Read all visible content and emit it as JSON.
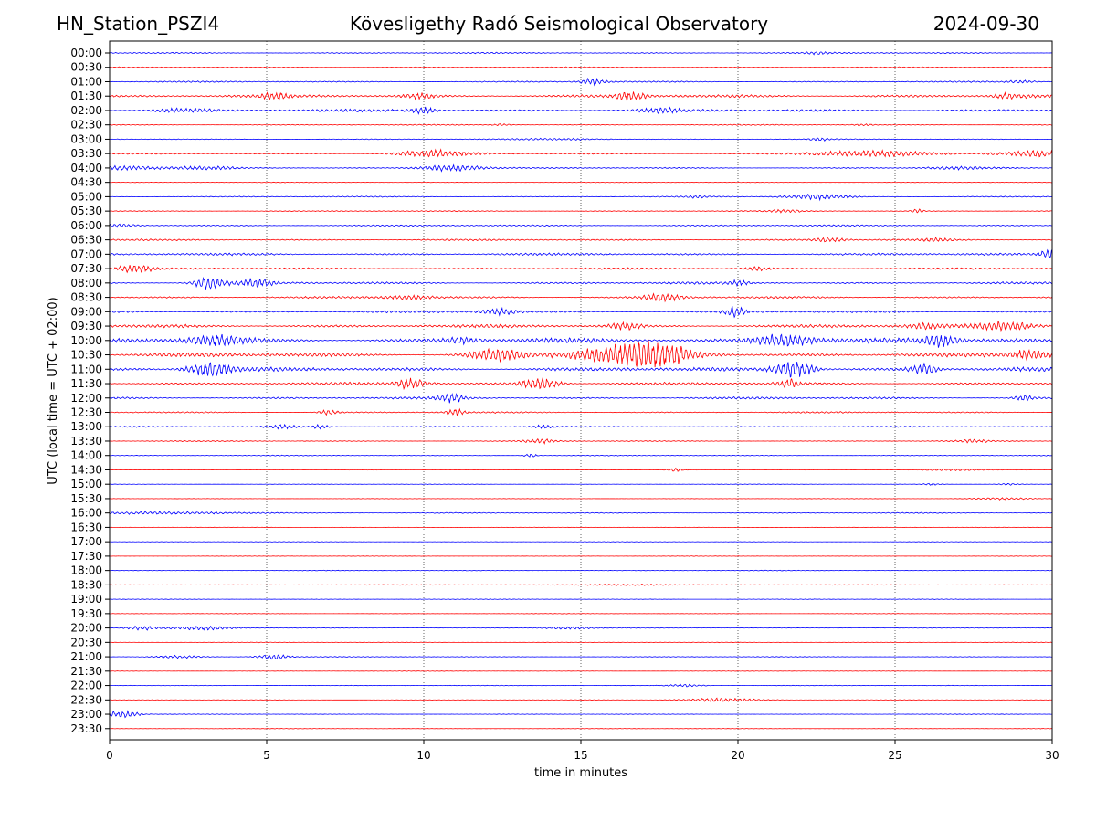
{
  "header": {
    "station": "HN_Station_PSZI4",
    "title": "Kövesligethy Radó Seismological Observatory",
    "date": "2024-09-30"
  },
  "chart_data": {
    "type": "line",
    "title": "Kövesligethy Radó Seismological Observatory",
    "xlabel": "time in minutes",
    "ylabel": "UTC (local time = UTC + 02:00)",
    "xlim": [
      0,
      30
    ],
    "xticks": [
      "0",
      "5",
      "10",
      "15",
      "20",
      "25",
      "30"
    ],
    "grid": "vertical dotted at every 5 minutes",
    "colors": {
      "even_rows": "#0000ff",
      "odd_rows": "#ff0000"
    },
    "rows": [
      {
        "label": "00:00",
        "amp": 1.2,
        "events": [
          [
            22.5,
            1.5,
            0.4
          ]
        ]
      },
      {
        "label": "00:30",
        "amp": 0.9,
        "events": []
      },
      {
        "label": "01:00",
        "amp": 1.3,
        "events": [
          [
            15.4,
            5,
            0.4
          ],
          [
            29.0,
            2,
            0.4
          ]
        ]
      },
      {
        "label": "01:30",
        "amp": 2.6,
        "events": [
          [
            5.3,
            4,
            0.4
          ],
          [
            9.9,
            4,
            0.5
          ],
          [
            16.6,
            6,
            0.5
          ],
          [
            28.6,
            3,
            0.5
          ]
        ]
      },
      {
        "label": "02:00",
        "amp": 2.4,
        "events": [
          [
            2.3,
            3,
            1.0
          ],
          [
            10.0,
            5,
            0.4
          ],
          [
            17.5,
            3,
            0.6
          ]
        ]
      },
      {
        "label": "02:30",
        "amp": 0.9,
        "events": [
          [
            12.5,
            1.5,
            0.3
          ],
          [
            24.0,
            1.5,
            0.3
          ]
        ]
      },
      {
        "label": "03:00",
        "amp": 0.8,
        "events": [
          [
            14.5,
            1.2,
            1.5
          ],
          [
            22.6,
            2,
            0.3
          ]
        ]
      },
      {
        "label": "03:30",
        "amp": 1.3,
        "events": [
          [
            10.3,
            5,
            1.2
          ],
          [
            24.0,
            4,
            2.0
          ],
          [
            28.5,
            2,
            0.8
          ],
          [
            29.6,
            5,
            0.7
          ]
        ]
      },
      {
        "label": "04:00",
        "amp": 1.1,
        "events": [
          [
            0.5,
            3,
            1.2
          ],
          [
            3.0,
            2,
            1.0
          ],
          [
            10.9,
            5,
            1.0
          ],
          [
            27.0,
            2,
            1.0
          ]
        ]
      },
      {
        "label": "04:30",
        "amp": 0.5,
        "events": []
      },
      {
        "label": "05:00",
        "amp": 1.0,
        "events": [
          [
            18.7,
            1.5,
            0.3
          ],
          [
            22.5,
            4,
            1.0
          ]
        ]
      },
      {
        "label": "05:30",
        "amp": 0.9,
        "events": [
          [
            21.5,
            2,
            0.5
          ],
          [
            25.7,
            3,
            0.2
          ]
        ]
      },
      {
        "label": "06:00",
        "amp": 1.3,
        "events": [
          [
            0.3,
            2,
            0.6
          ]
        ]
      },
      {
        "label": "06:30",
        "amp": 1.5,
        "events": [
          [
            22.9,
            3,
            0.5
          ],
          [
            26.3,
            2,
            0.5
          ]
        ]
      },
      {
        "label": "07:00",
        "amp": 2.0,
        "events": [
          [
            29.9,
            6,
            0.3
          ]
        ]
      },
      {
        "label": "07:30",
        "amp": 1.6,
        "events": [
          [
            0.8,
            6,
            0.6
          ],
          [
            20.6,
            3,
            0.4
          ]
        ]
      },
      {
        "label": "08:00",
        "amp": 2.0,
        "events": [
          [
            3.2,
            9,
            0.5
          ],
          [
            4.7,
            6,
            0.5
          ],
          [
            20.0,
            3,
            0.3
          ]
        ]
      },
      {
        "label": "08:30",
        "amp": 1.9,
        "events": [
          [
            9.5,
            3,
            0.8
          ],
          [
            17.6,
            6,
            0.6
          ]
        ]
      },
      {
        "label": "09:00",
        "amp": 2.0,
        "events": [
          [
            12.4,
            5,
            0.6
          ],
          [
            19.9,
            7,
            0.3
          ]
        ]
      },
      {
        "label": "09:30",
        "amp": 2.8,
        "events": [
          [
            16.4,
            5,
            0.5
          ],
          [
            28.5,
            7,
            1.0
          ],
          [
            26.0,
            4,
            0.5
          ]
        ]
      },
      {
        "label": "10:00",
        "amp": 4.0,
        "events": [
          [
            3.4,
            7,
            0.8
          ],
          [
            11.2,
            5,
            0.5
          ],
          [
            21.5,
            10,
            1.0
          ],
          [
            26.4,
            10,
            0.5
          ]
        ]
      },
      {
        "label": "10:30",
        "amp": 3.6,
        "events": [
          [
            12.3,
            8,
            0.8
          ],
          [
            16.6,
            14,
            1.8
          ],
          [
            17.6,
            9,
            0.8
          ],
          [
            29.3,
            7,
            0.6
          ]
        ]
      },
      {
        "label": "11:00",
        "amp": 3.4,
        "events": [
          [
            3.2,
            11,
            0.7
          ],
          [
            21.8,
            14,
            0.6
          ],
          [
            25.9,
            9,
            0.4
          ]
        ]
      },
      {
        "label": "11:30",
        "amp": 2.4,
        "events": [
          [
            9.6,
            8,
            0.5
          ],
          [
            13.7,
            9,
            0.6
          ],
          [
            21.6,
            6,
            0.3
          ]
        ]
      },
      {
        "label": "12:00",
        "amp": 2.0,
        "events": [
          [
            10.9,
            6,
            0.4
          ],
          [
            29.1,
            4,
            0.3
          ]
        ]
      },
      {
        "label": "12:30",
        "amp": 1.3,
        "events": [
          [
            7.0,
            4,
            0.3
          ],
          [
            11.0,
            5,
            0.3
          ]
        ]
      },
      {
        "label": "13:00",
        "amp": 1.0,
        "events": [
          [
            5.5,
            3,
            0.5
          ],
          [
            6.7,
            3,
            0.3
          ],
          [
            13.8,
            2,
            0.4
          ]
        ]
      },
      {
        "label": "13:30",
        "amp": 0.9,
        "events": [
          [
            13.7,
            3,
            0.5
          ],
          [
            27.5,
            2,
            0.5
          ]
        ]
      },
      {
        "label": "14:00",
        "amp": 0.7,
        "events": [
          [
            13.4,
            3,
            0.2
          ]
        ]
      },
      {
        "label": "14:30",
        "amp": 0.4,
        "events": [
          [
            18.0,
            3,
            0.2
          ],
          [
            26.8,
            1.5,
            1.0
          ]
        ]
      },
      {
        "label": "15:00",
        "amp": 0.4,
        "events": [
          [
            26.2,
            1.5,
            0.3
          ],
          [
            28.6,
            1.5,
            0.4
          ]
        ]
      },
      {
        "label": "15:30",
        "amp": 0.4,
        "events": [
          [
            28.4,
            1.5,
            1.0
          ]
        ]
      },
      {
        "label": "16:00",
        "amp": 0.9,
        "events": [
          [
            2.0,
            1.5,
            3.0
          ]
        ]
      },
      {
        "label": "16:30",
        "amp": 0.4,
        "events": []
      },
      {
        "label": "17:00",
        "amp": 0.4,
        "events": []
      },
      {
        "label": "17:30",
        "amp": 0.4,
        "events": []
      },
      {
        "label": "18:00",
        "amp": 0.6,
        "events": []
      },
      {
        "label": "18:30",
        "amp": 0.6,
        "events": [
          [
            16.5,
            1.2,
            1.5
          ]
        ]
      },
      {
        "label": "19:00",
        "amp": 0.5,
        "events": []
      },
      {
        "label": "19:30",
        "amp": 0.4,
        "events": []
      },
      {
        "label": "20:00",
        "amp": 0.6,
        "events": [
          [
            1.0,
            3,
            0.5
          ],
          [
            3.0,
            3,
            1.0
          ],
          [
            14.6,
            2,
            0.8
          ]
        ]
      },
      {
        "label": "20:30",
        "amp": 0.5,
        "events": []
      },
      {
        "label": "21:00",
        "amp": 0.6,
        "events": [
          [
            2.2,
            2,
            0.8
          ],
          [
            5.2,
            4,
            0.5
          ]
        ]
      },
      {
        "label": "21:30",
        "amp": 0.4,
        "events": []
      },
      {
        "label": "22:00",
        "amp": 0.5,
        "events": [
          [
            18.3,
            2,
            0.6
          ]
        ]
      },
      {
        "label": "22:30",
        "amp": 0.4,
        "events": [
          [
            19.5,
            3,
            1.2
          ]
        ]
      },
      {
        "label": "23:00",
        "amp": 0.5,
        "events": [
          [
            0.4,
            6,
            0.5
          ]
        ]
      },
      {
        "label": "23:30",
        "amp": 0.4,
        "events": []
      }
    ]
  }
}
